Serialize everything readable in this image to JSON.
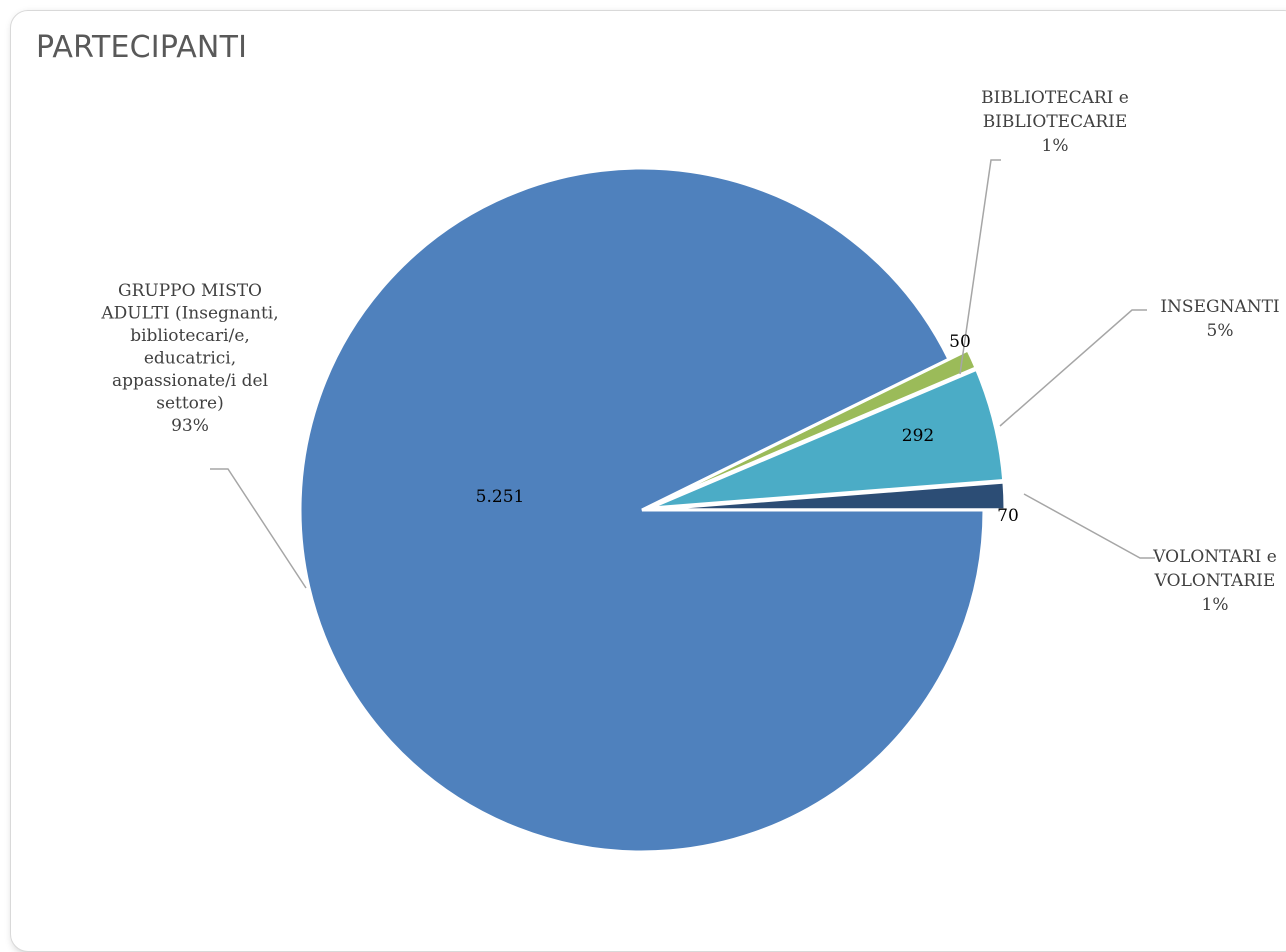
{
  "chart_data": {
    "type": "pie",
    "title": "PARTECIPANTI",
    "series": [
      {
        "categories": [
          "GRUPPO  MISTO ADULTI (Insegnanti, bibliotecari/e, educatrici, appassionate/i del settore)",
          "BIBLIOTECARI e BIBLIOTECARIE",
          "INSEGNANTI",
          "VOLONTARI e VOLONTARIE"
        ],
        "values": [
          5251,
          50,
          292,
          70
        ],
        "value_labels": [
          "5.251",
          "50",
          "292",
          "70"
        ],
        "percent_labels": [
          "93%",
          "1%",
          "5%",
          "1%"
        ]
      }
    ],
    "category_label_lines": [
      [
        "GRUPPO  MISTO",
        "ADULTI (Insegnanti,",
        "bibliotecari/e,",
        "educatrici,",
        "appassionate/i del",
        "settore)"
      ],
      [
        "BIBLIOTECARI e",
        "BIBLIOTECARIE"
      ],
      [
        "INSEGNANTI"
      ],
      [
        "VOLONTARI e",
        "VOLONTARIE"
      ]
    ],
    "colors": [
      "#4f81bd",
      "#9bbb59",
      "#4bacc6",
      "#2c4d75"
    ],
    "start_angle_deg": 0,
    "direction": "counterclockwise",
    "exploded": true,
    "legend": "none"
  }
}
